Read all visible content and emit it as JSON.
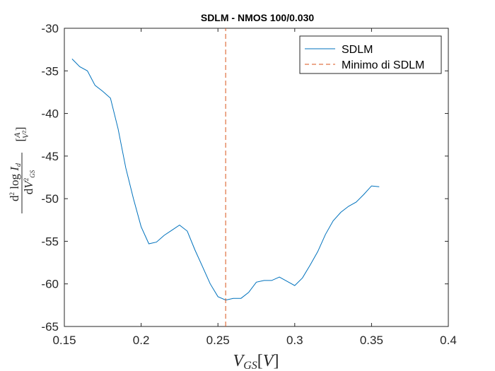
{
  "chart_data": {
    "type": "line",
    "title": "SDLM - NMOS 100/0.030",
    "xlabel": "V_{GS}[V]",
    "ylabel": "d² log I_d / dV²_GS [A/V²]",
    "xlim": [
      0.15,
      0.4
    ],
    "ylim": [
      -65,
      -30
    ],
    "xticks": [
      "0.15",
      "0.2",
      "0.25",
      "0.3",
      "0.35",
      "0.4"
    ],
    "yticks": [
      "-30",
      "-35",
      "-40",
      "-45",
      "-50",
      "-55",
      "-60",
      "-65"
    ],
    "grid": false,
    "legend_position": "top-right",
    "series": [
      {
        "name": "SDLM",
        "color": "#0072BD",
        "style": "solid",
        "x": [
          0.155,
          0.16,
          0.165,
          0.17,
          0.175,
          0.18,
          0.185,
          0.19,
          0.195,
          0.2,
          0.205,
          0.21,
          0.215,
          0.22,
          0.225,
          0.23,
          0.235,
          0.24,
          0.245,
          0.25,
          0.255,
          0.26,
          0.265,
          0.27,
          0.275,
          0.28,
          0.285,
          0.29,
          0.295,
          0.3,
          0.305,
          0.31,
          0.315,
          0.32,
          0.325,
          0.33,
          0.335,
          0.34,
          0.345,
          0.35,
          0.355
        ],
        "y": [
          -33.6,
          -34.5,
          -35.0,
          -36.7,
          -37.4,
          -38.2,
          -41.8,
          -46.4,
          -50.0,
          -53.3,
          -55.3,
          -55.1,
          -54.3,
          -53.7,
          -53.1,
          -53.8,
          -56.0,
          -58.0,
          -60.0,
          -61.5,
          -61.9,
          -61.7,
          -61.7,
          -61.0,
          -59.8,
          -59.6,
          -59.6,
          -59.2,
          -59.7,
          -60.2,
          -59.3,
          -57.8,
          -56.2,
          -54.2,
          -52.6,
          -51.6,
          -50.9,
          -50.4,
          -49.5,
          -48.5,
          -48.6
        ]
      },
      {
        "name": "Minimo di SDLM",
        "color": "#D95319",
        "style": "dashed",
        "x": [
          0.255,
          0.255
        ],
        "y": [
          -65,
          -30
        ]
      }
    ]
  }
}
